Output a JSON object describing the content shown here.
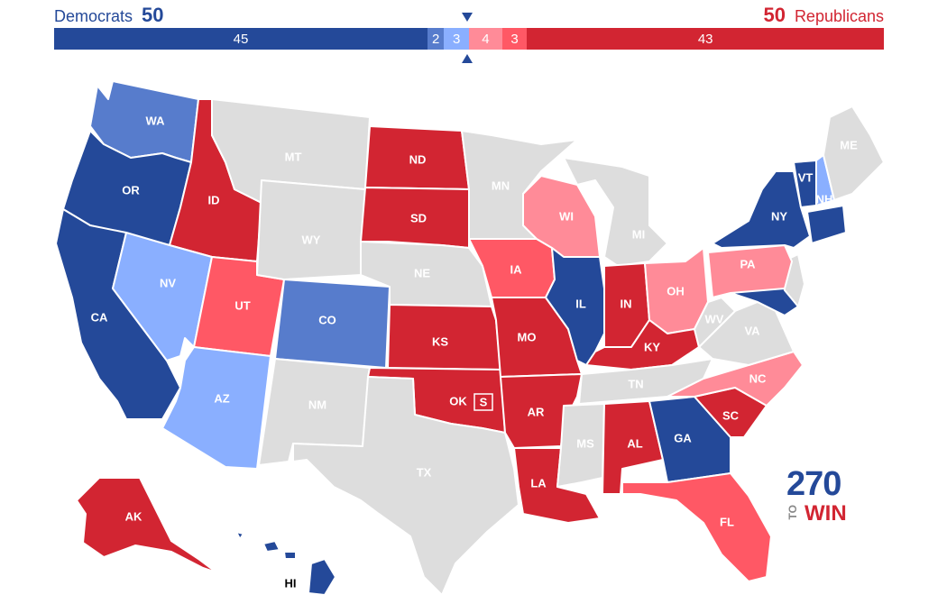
{
  "header": {
    "dem_label": "Democrats",
    "dem_total": "50",
    "rep_total": "50",
    "rep_label": "Republicans"
  },
  "bar": [
    {
      "value": 45,
      "label": "45",
      "color": "#244999"
    },
    {
      "value": 2,
      "label": "2",
      "color": "#577ccc"
    },
    {
      "value": 3,
      "label": "3",
      "color": "#8aafff"
    },
    {
      "value": 4,
      "label": "4",
      "color": "#ff8b98"
    },
    {
      "value": 3,
      "label": "3",
      "color": "#ff5865"
    },
    {
      "value": 43,
      "label": "43",
      "color": "#d22532"
    }
  ],
  "colors": {
    "safe_d": "#244999",
    "likely_d": "#577ccc",
    "lean_d": "#8aafff",
    "lean_r": "#ff8b98",
    "likely_r": "#ff5865",
    "safe_r": "#d22532",
    "no_race": "#dddddd"
  },
  "states": {
    "WA": {
      "label": "WA",
      "rating": "likely_d"
    },
    "OR": {
      "label": "OR",
      "rating": "safe_d"
    },
    "CA": {
      "label": "CA",
      "rating": "safe_d"
    },
    "ID": {
      "label": "ID",
      "rating": "safe_r"
    },
    "NV": {
      "label": "NV",
      "rating": "lean_d"
    },
    "UT": {
      "label": "UT",
      "rating": "likely_r"
    },
    "AZ": {
      "label": "AZ",
      "rating": "lean_d"
    },
    "MT": {
      "label": "MT",
      "rating": "no_race"
    },
    "WY": {
      "label": "WY",
      "rating": "no_race"
    },
    "CO": {
      "label": "CO",
      "rating": "likely_d"
    },
    "NM": {
      "label": "NM",
      "rating": "no_race"
    },
    "ND": {
      "label": "ND",
      "rating": "safe_r"
    },
    "SD": {
      "label": "SD",
      "rating": "safe_r"
    },
    "NE": {
      "label": "NE",
      "rating": "no_race"
    },
    "KS": {
      "label": "KS",
      "rating": "safe_r"
    },
    "OK": {
      "label": "OK",
      "rating": "safe_r",
      "special": "S"
    },
    "TX": {
      "label": "TX",
      "rating": "no_race"
    },
    "MN": {
      "label": "MN",
      "rating": "no_race"
    },
    "IA": {
      "label": "IA",
      "rating": "likely_r"
    },
    "MO": {
      "label": "MO",
      "rating": "safe_r"
    },
    "AR": {
      "label": "AR",
      "rating": "safe_r"
    },
    "LA": {
      "label": "LA",
      "rating": "safe_r"
    },
    "WI": {
      "label": "WI",
      "rating": "lean_r"
    },
    "IL": {
      "label": "IL",
      "rating": "safe_d"
    },
    "MI": {
      "label": "MI",
      "rating": "no_race"
    },
    "IN": {
      "label": "IN",
      "rating": "safe_r"
    },
    "OH": {
      "label": "OH",
      "rating": "lean_r"
    },
    "KY": {
      "label": "KY",
      "rating": "safe_r"
    },
    "TN": {
      "label": "TN",
      "rating": "no_race"
    },
    "MS": {
      "label": "MS",
      "rating": "no_race"
    },
    "AL": {
      "label": "AL",
      "rating": "safe_r"
    },
    "GA": {
      "label": "GA",
      "rating": "safe_d"
    },
    "FL": {
      "label": "FL",
      "rating": "likely_r"
    },
    "SC": {
      "label": "SC",
      "rating": "safe_r"
    },
    "NC": {
      "label": "NC",
      "rating": "lean_r"
    },
    "VA": {
      "label": "VA",
      "rating": "no_race"
    },
    "WV": {
      "label": "WV",
      "rating": "no_race"
    },
    "PA": {
      "label": "PA",
      "rating": "lean_r"
    },
    "NY": {
      "label": "NY",
      "rating": "safe_d"
    },
    "VT": {
      "label": "VT",
      "rating": "safe_d"
    },
    "NH": {
      "label": "NH",
      "rating": "lean_d"
    },
    "ME": {
      "label": "ME",
      "rating": "no_race"
    },
    "AK": {
      "label": "AK",
      "rating": "safe_r"
    },
    "HI": {
      "label": "HI",
      "rating": "safe_d"
    }
  },
  "logo": {
    "top": "270",
    "to": "TO",
    "bottom": "WIN"
  }
}
